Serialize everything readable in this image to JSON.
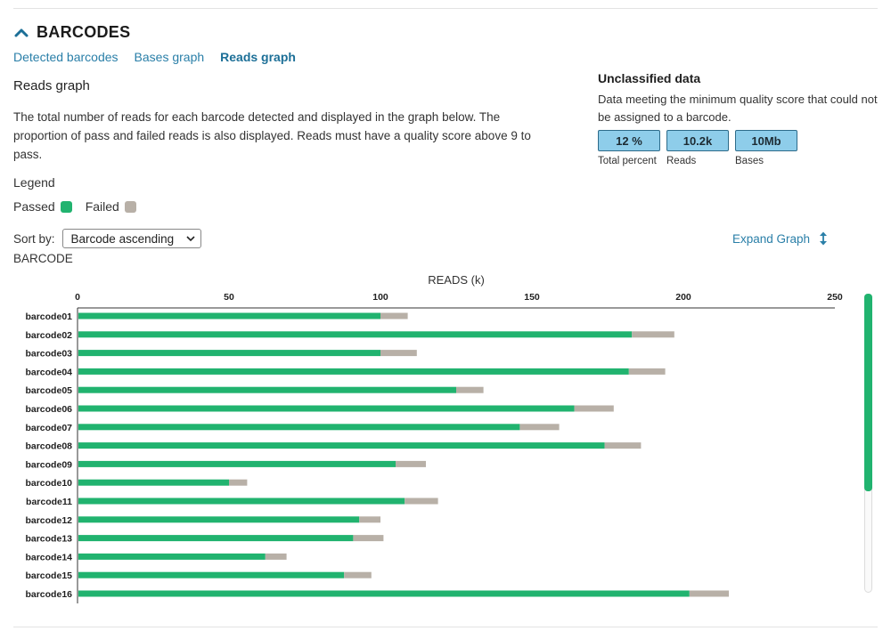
{
  "header": {
    "title": "BARCODES"
  },
  "tabs": [
    {
      "label": "Detected barcodes",
      "active": false
    },
    {
      "label": "Bases graph",
      "active": false
    },
    {
      "label": "Reads graph",
      "active": true
    }
  ],
  "graph": {
    "subtitle": "Reads graph",
    "description": "The total number of reads for each barcode detected and displayed in the graph below. The proportion of pass and failed reads is also displayed. Reads must have a quality score above 9 to pass."
  },
  "legend": {
    "title": "Legend",
    "passed_label": "Passed",
    "failed_label": "Failed"
  },
  "colors": {
    "passed": "#21b36f",
    "failed": "#b8b0a7",
    "accent": "#2a7fa8",
    "stat_fill": "#8ecdea"
  },
  "sort": {
    "label": "Sort by:",
    "selected": "Barcode ascending"
  },
  "y_axis_label": "BARCODE",
  "expand": {
    "label": "Expand Graph",
    "icon": "expand-vertical-icon"
  },
  "unclassified": {
    "title": "Unclassified data",
    "description": "Data meeting the minimum quality score that could not be assigned to a barcode.",
    "stats": [
      {
        "value": "12 %",
        "label": "Total percent"
      },
      {
        "value": "10.2k",
        "label": "Reads"
      },
      {
        "value": "10Mb",
        "label": "Bases"
      }
    ]
  },
  "chart_data": {
    "type": "bar",
    "orientation": "horizontal",
    "stacked": true,
    "title": "READS (k)",
    "xlabel": "READS (k)",
    "ylabel": "BARCODE",
    "xlim": [
      0,
      250
    ],
    "xticks": [
      0,
      50,
      100,
      150,
      200,
      250
    ],
    "categories": [
      "barcode01",
      "barcode02",
      "barcode03",
      "barcode04",
      "barcode05",
      "barcode06",
      "barcode07",
      "barcode08",
      "barcode09",
      "barcode10",
      "barcode11",
      "barcode12",
      "barcode13",
      "barcode14",
      "barcode15",
      "barcode16"
    ],
    "series": [
      {
        "name": "Passed",
        "values": [
          100,
          183,
          100,
          182,
          125,
          164,
          146,
          174,
          105,
          50,
          108,
          93,
          91,
          62,
          88,
          202
        ]
      },
      {
        "name": "Failed",
        "values": [
          9,
          14,
          12,
          12,
          9,
          13,
          13,
          12,
          10,
          6,
          11,
          7,
          10,
          7,
          9,
          13
        ]
      }
    ],
    "legend_position": "top-left",
    "grid": false
  }
}
